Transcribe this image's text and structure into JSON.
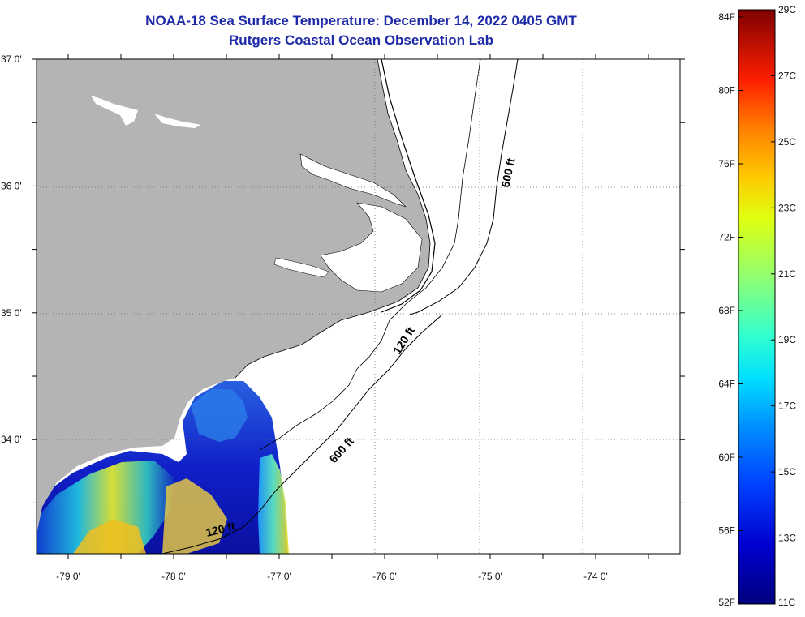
{
  "title": {
    "line1": "NOAA-18 Sea Surface Temperature:  December 14, 2022 0405 GMT",
    "line2": "Rutgers Coastal Ocean Observation Lab"
  },
  "map": {
    "lon_range": [
      -79.3,
      -73.2
    ],
    "lat_range": [
      33.1,
      37.0
    ],
    "lat_labels": [
      {
        "lat": 37.0,
        "text": "37 0'"
      },
      {
        "lat": 36.0,
        "text": "36 0'"
      },
      {
        "lat": 35.0,
        "text": "35 0'"
      },
      {
        "lat": 34.0,
        "text": "34 0'"
      }
    ],
    "lon_labels": [
      {
        "lon": -79.0,
        "text": "-79 0'"
      },
      {
        "lon": -78.0,
        "text": "-78 0'"
      },
      {
        "lon": -77.0,
        "text": "-77 0'"
      },
      {
        "lon": -76.0,
        "text": "-76 0'"
      },
      {
        "lon": -75.0,
        "text": "-75 0'"
      },
      {
        "lon": -74.0,
        "text": "-74 0'"
      }
    ],
    "contour_labels": {
      "c600_north": "600 ft",
      "c120": "120 ft",
      "c600_south": "600 ft",
      "c120_south": "120 ft"
    },
    "land_color": "#b4b4b4",
    "ocean_color": "#ffffff"
  },
  "colorbar": {
    "f_labels": [
      "84F",
      "80F",
      "76F",
      "72F",
      "68F",
      "64F",
      "60F",
      "56F",
      "52F"
    ],
    "c_labels": [
      "29C",
      "27C",
      "25C",
      "23C",
      "21C",
      "19C",
      "17C",
      "15C",
      "13C",
      "11C"
    ]
  }
}
